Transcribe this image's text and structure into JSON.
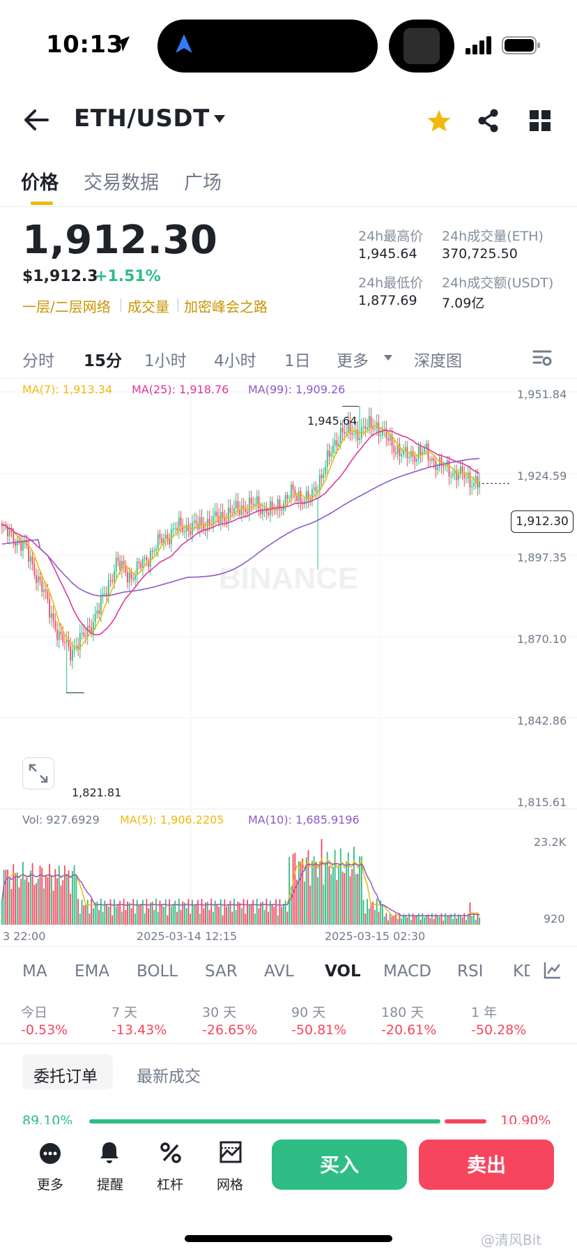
{
  "status": {
    "time": "10:13"
  },
  "header": {
    "pair": "ETH/USDT"
  },
  "tabs": [
    "价格",
    "交易数据",
    "广场"
  ],
  "price": {
    "last": "1,912.30",
    "usd": "$1,912.3",
    "change": "+1.51%",
    "tags": [
      "一层/二层网络",
      "成交量",
      "加密峰会之路"
    ]
  },
  "stats": {
    "high_label": "24h最高价",
    "high": "1,945.64",
    "low_label": "24h最低价",
    "low": "1,877.69",
    "vol_eth_label": "24h成交量(ETH)",
    "vol_eth": "370,725.50",
    "vol_usdt_label": "24h成交额(USDT)",
    "vol_usdt": "7.09亿"
  },
  "intervals": [
    "分时",
    "15分",
    "1小时",
    "4小时",
    "1日",
    "更多",
    "深度图"
  ],
  "ma_legend": {
    "ma7": "MA(7): 1,913.34",
    "ma25": "MA(25): 1,918.76",
    "ma99": "MA(99): 1,909.26"
  },
  "vol_legend": {
    "vol": "Vol: 927.6929",
    "ma5": "MA(5): 1,906.2205",
    "ma10": "MA(10): 1,685.9196"
  },
  "watermark_text": "BINANCE",
  "chart_data": {
    "type": "candlestick",
    "interval": "15分",
    "y_axis_ticks": [
      "1,951.84",
      "1,924.59",
      "1,897.35",
      "1,870.10",
      "1,842.86",
      "1,815.61"
    ],
    "ylim": [
      1815.61,
      1951.84
    ],
    "x_axis_ticks": [
      "3 22:00",
      "2025-03-14 12:15",
      "2025-03-15 02:30"
    ],
    "max_marker": "1,945.64",
    "min_marker": "1,821.81",
    "current_price_box": "1,912.30",
    "volume_axis_ticks": [
      "23.2K",
      "920"
    ],
    "colors": {
      "up": "#2ebd85",
      "down": "#f6465d",
      "ma7": "#f0b90b",
      "ma25": "#e0369a",
      "ma99": "#8e59c9"
    }
  },
  "indicators": [
    "MA",
    "EMA",
    "BOLL",
    "SAR",
    "AVL",
    "VOL",
    "MACD",
    "RSI",
    "KD"
  ],
  "performance": [
    {
      "label": "今日",
      "value": "-0.53%"
    },
    {
      "label": "7 天",
      "value": "-13.43%"
    },
    {
      "label": "30 天",
      "value": "-26.65%"
    },
    {
      "label": "90 天",
      "value": "-50.81%"
    },
    {
      "label": "180 天",
      "value": "-20.61%"
    },
    {
      "label": "1 年",
      "value": "-50.28%"
    }
  ],
  "orders": {
    "tab1": "委托订单",
    "tab2": "最新成交",
    "buy_pct": "89.10%",
    "sell_pct": "10.90%",
    "buy_ratio": 0.891
  },
  "bottom": {
    "more": "更多",
    "alert": "提醒",
    "leverage": "杠杆",
    "grid": "网格",
    "buy": "买入",
    "sell": "卖出"
  },
  "footer_watermark": "@清风Bit"
}
